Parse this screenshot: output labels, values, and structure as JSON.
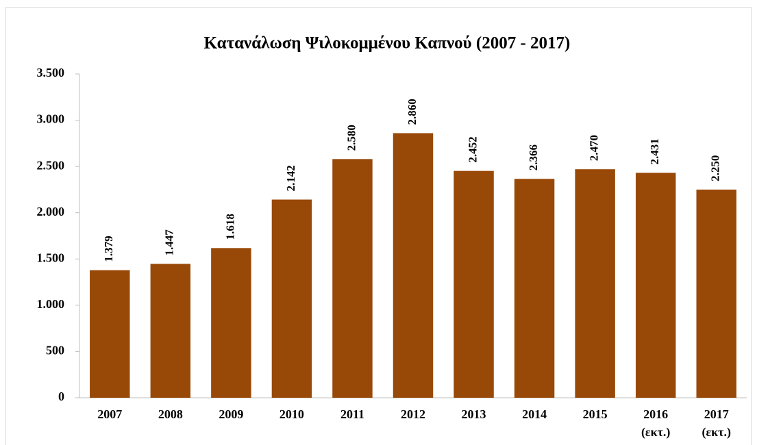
{
  "chart_data": {
    "type": "bar",
    "title": "Κατανάλωση Ψιλοκομμένου Καπνού (2007 - 2017)",
    "categories": [
      "2007",
      "2008",
      "2009",
      "2010",
      "2011",
      "2012",
      "2013",
      "2014",
      "2015",
      "2016 (εκτ.)",
      "2017 (εκτ.)"
    ],
    "values": [
      1379,
      1447,
      1618,
      2142,
      2580,
      2860,
      2452,
      2366,
      2470,
      2431,
      2250
    ],
    "value_labels": [
      "1.379",
      "1.447",
      "1.618",
      "2.142",
      "2.580",
      "2.860",
      "2.452",
      "2.366",
      "2.470",
      "2.431",
      "2.250"
    ],
    "color": "#984807",
    "ylim": [
      0,
      3500
    ],
    "yticks": [
      0,
      500,
      {
        "value": 1000,
        "label": "1.000"
      },
      {
        "value": 1500,
        "label": "1.500"
      },
      {
        "value": 2000,
        "label": "2.000"
      },
      {
        "value": 2500,
        "label": "2.500"
      },
      {
        "value": 3000,
        "label": "3.000"
      },
      {
        "value": 3500,
        "label": "3.500"
      }
    ],
    "grid": false
  }
}
